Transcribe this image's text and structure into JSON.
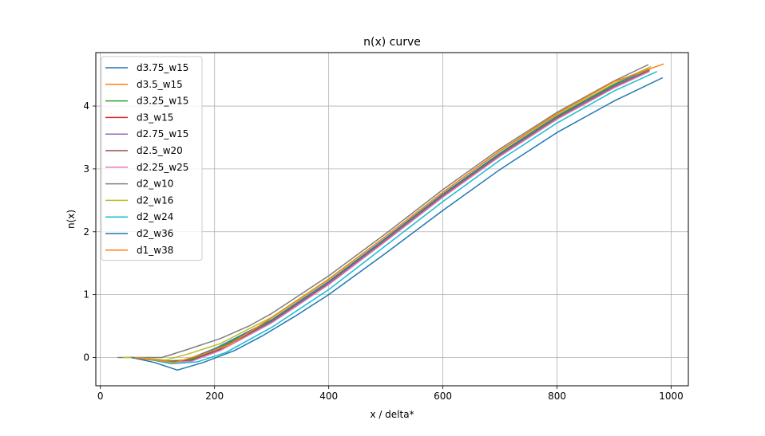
{
  "chart_data": {
    "type": "line",
    "title": "n(x) curve",
    "xlabel": "x / delta*",
    "ylabel": "n(x)",
    "xlim": [
      -8,
      1030
    ],
    "ylim": [
      -0.45,
      4.85
    ],
    "xticks": [
      0,
      200,
      400,
      600,
      800,
      1000
    ],
    "yticks": [
      0,
      1,
      2,
      3,
      4
    ],
    "grid": true,
    "legend_position": "top-left",
    "series": [
      {
        "name": "d3.75_w15",
        "color": "#1f77b4",
        "x": [
          52,
          85,
          110,
          150,
          200,
          300,
          400,
          500,
          600,
          700,
          800,
          900,
          960
        ],
        "y": [
          0,
          -0.02,
          -0.06,
          -0.04,
          0.14,
          0.6,
          1.21,
          1.9,
          2.6,
          3.25,
          3.84,
          4.34,
          4.6
        ]
      },
      {
        "name": "d3.5_w15",
        "color": "#ff7f0e",
        "x": [
          50,
          85,
          115,
          155,
          205,
          300,
          400,
          500,
          600,
          700,
          800,
          900,
          962
        ],
        "y": [
          0,
          -0.02,
          -0.06,
          -0.04,
          0.14,
          0.58,
          1.19,
          1.88,
          2.58,
          3.23,
          3.82,
          4.32,
          4.58
        ]
      },
      {
        "name": "d3.25_w15",
        "color": "#2ca02c",
        "x": [
          50,
          85,
          115,
          155,
          205,
          300,
          400,
          500,
          600,
          700,
          800,
          900,
          962
        ],
        "y": [
          0,
          -0.02,
          -0.06,
          -0.04,
          0.14,
          0.58,
          1.19,
          1.88,
          2.58,
          3.23,
          3.82,
          4.32,
          4.58
        ]
      },
      {
        "name": "d3_w15",
        "color": "#d62728",
        "x": [
          52,
          85,
          118,
          158,
          208,
          300,
          400,
          500,
          600,
          700,
          800,
          900,
          962
        ],
        "y": [
          0,
          -0.02,
          -0.07,
          -0.05,
          0.13,
          0.57,
          1.18,
          1.87,
          2.57,
          3.22,
          3.81,
          4.31,
          4.57
        ]
      },
      {
        "name": "d2.75_w15",
        "color": "#9467bd",
        "x": [
          52,
          85,
          118,
          158,
          208,
          300,
          400,
          500,
          600,
          700,
          800,
          900,
          962
        ],
        "y": [
          0,
          -0.02,
          -0.07,
          -0.05,
          0.13,
          0.57,
          1.18,
          1.87,
          2.57,
          3.22,
          3.81,
          4.31,
          4.57
        ]
      },
      {
        "name": "d2.5_w20",
        "color": "#8c564b",
        "x": [
          52,
          85,
          118,
          158,
          208,
          300,
          400,
          500,
          600,
          700,
          800,
          900,
          962
        ],
        "y": [
          0,
          -0.02,
          -0.07,
          -0.05,
          0.12,
          0.56,
          1.17,
          1.86,
          2.56,
          3.21,
          3.8,
          4.3,
          4.56
        ]
      },
      {
        "name": "d2.25_w25",
        "color": "#e377c2",
        "x": [
          52,
          85,
          120,
          160,
          210,
          300,
          400,
          500,
          600,
          700,
          800,
          900,
          962
        ],
        "y": [
          0,
          -0.03,
          -0.08,
          -0.06,
          0.11,
          0.55,
          1.16,
          1.85,
          2.55,
          3.2,
          3.79,
          4.29,
          4.55
        ]
      },
      {
        "name": "d2_w10",
        "color": "#7f7f7f",
        "x": [
          30,
          60,
          108,
          150,
          210,
          260,
          300,
          400,
          500,
          600,
          700,
          800,
          900,
          960
        ],
        "y": [
          0,
          0,
          0,
          0.12,
          0.3,
          0.5,
          0.7,
          1.3,
          1.97,
          2.67,
          3.32,
          3.9,
          4.4,
          4.66
        ]
      },
      {
        "name": "d2_w16",
        "color": "#bcbd22",
        "x": [
          40,
          75,
          115,
          155,
          210,
          300,
          400,
          500,
          600,
          700,
          800,
          900,
          965
        ],
        "y": [
          0,
          -0.01,
          -0.04,
          0.06,
          0.22,
          0.64,
          1.25,
          1.93,
          2.63,
          3.28,
          3.86,
          4.36,
          4.63
        ]
      },
      {
        "name": "d2_w24",
        "color": "#17becf",
        "x": [
          55,
          90,
          125,
          170,
          220,
          300,
          400,
          500,
          600,
          700,
          800,
          900,
          975
        ],
        "y": [
          0,
          -0.04,
          -0.1,
          -0.07,
          0.08,
          0.48,
          1.08,
          1.78,
          2.48,
          3.14,
          3.73,
          4.24,
          4.55
        ]
      },
      {
        "name": "d2_w36",
        "color": "#1f77b4",
        "x": [
          55,
          95,
          135,
          180,
          235,
          285,
          340,
          400,
          500,
          600,
          700,
          800,
          900,
          985
        ],
        "y": [
          0,
          -0.08,
          -0.2,
          -0.08,
          0.11,
          0.35,
          0.65,
          1.0,
          1.66,
          2.34,
          2.99,
          3.58,
          4.08,
          4.45
        ]
      },
      {
        "name": "d1_w38",
        "color": "#ff7f0e",
        "x": [
          60,
          95,
          130,
          175,
          225,
          300,
          400,
          500,
          600,
          700,
          800,
          900,
          987
        ],
        "y": [
          0,
          -0.04,
          -0.08,
          0.04,
          0.2,
          0.63,
          1.24,
          1.93,
          2.63,
          3.29,
          3.88,
          4.39,
          4.67
        ]
      }
    ]
  }
}
